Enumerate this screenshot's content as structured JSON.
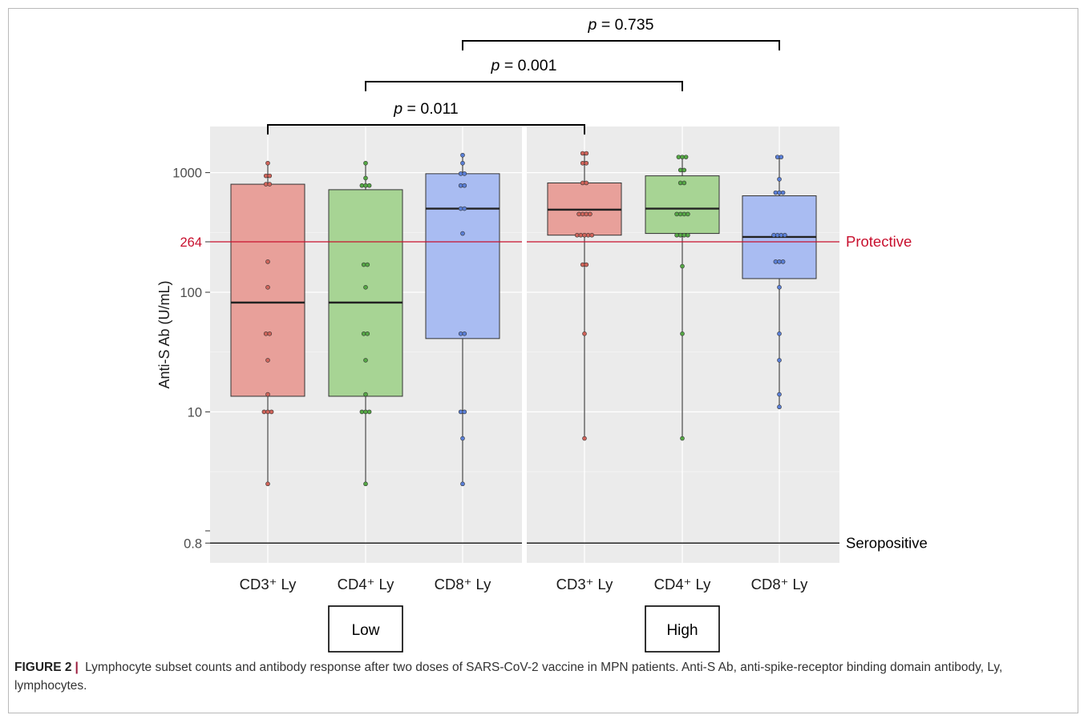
{
  "chart_data": {
    "type": "box",
    "ylabel": "Anti-S Ab (U/mL)",
    "yscale": "log",
    "ylim": [
      0.6,
      2200
    ],
    "yticks": [
      {
        "value": 0.8,
        "label": "0.8"
      },
      {
        "value": 10,
        "label": "10"
      },
      {
        "value": 100,
        "label": "100"
      },
      {
        "value": 264,
        "label": "264"
      },
      {
        "value": 1000,
        "label": "1000"
      }
    ],
    "panels": [
      {
        "group_label": "Low",
        "categories": [
          "CD3⁺ Ly",
          "CD4⁺ Ly",
          "CD8⁺ Ly"
        ]
      },
      {
        "group_label": "High",
        "categories": [
          "CD3⁺ Ly",
          "CD4⁺ Ly",
          "CD8⁺ Ly"
        ]
      }
    ],
    "colors": {
      "CD3": "#e8a09a",
      "CD4": "#a7d494",
      "CD8": "#a9bcf2",
      "CD3_point": "#d0645a",
      "CD4_point": "#55a845",
      "CD8_point": "#5b80d8",
      "protective": "#c8102e",
      "seropositive": "#000000",
      "panel_bg": "#ebebeb"
    },
    "boxes": [
      {
        "panel": 0,
        "subset": "CD3",
        "whisker_low": 2.5,
        "q1": 13.5,
        "median": 82,
        "q3": 800,
        "whisker_high": 1200,
        "points": [
          2.5,
          10,
          10,
          10,
          14,
          27,
          45,
          45,
          110,
          180,
          800,
          800,
          940,
          940,
          1200
        ]
      },
      {
        "panel": 0,
        "subset": "CD4",
        "whisker_low": 2.5,
        "q1": 13.5,
        "median": 82,
        "q3": 720,
        "whisker_high": 1200,
        "points": [
          2.5,
          10,
          10,
          10,
          14,
          27,
          45,
          45,
          110,
          170,
          170,
          780,
          780,
          780,
          900,
          1200
        ]
      },
      {
        "panel": 0,
        "subset": "CD8",
        "whisker_low": 2.5,
        "q1": 41,
        "median": 500,
        "q3": 980,
        "whisker_high": 1400,
        "points": [
          2.5,
          6,
          10,
          10,
          45,
          45,
          310,
          500,
          500,
          780,
          780,
          980,
          980,
          1200,
          1400
        ]
      },
      {
        "panel": 1,
        "subset": "CD3",
        "whisker_low": 6,
        "q1": 300,
        "median": 490,
        "q3": 820,
        "whisker_high": 1450,
        "points": [
          6,
          45,
          170,
          170,
          300,
          300,
          300,
          300,
          300,
          450,
          450,
          450,
          450,
          820,
          820,
          1200,
          1200,
          1450,
          1450
        ]
      },
      {
        "panel": 1,
        "subset": "CD4",
        "whisker_low": 6,
        "q1": 310,
        "median": 500,
        "q3": 940,
        "whisker_high": 1350,
        "points": [
          6,
          45,
          165,
          300,
          300,
          300,
          300,
          450,
          450,
          450,
          450,
          820,
          820,
          1050,
          1050,
          1350,
          1350,
          1350
        ]
      },
      {
        "panel": 1,
        "subset": "CD8",
        "whisker_low": 11,
        "q1": 130,
        "median": 290,
        "q3": 640,
        "whisker_high": 1350,
        "points": [
          11,
          14,
          27,
          45,
          110,
          180,
          180,
          180,
          300,
          300,
          300,
          300,
          680,
          680,
          680,
          880,
          1350,
          1350
        ]
      }
    ],
    "reference_lines": [
      {
        "value": 264,
        "label": "Protective",
        "color": "#c8102e"
      },
      {
        "value": 0.8,
        "label": "Seropositive",
        "color": "#000000"
      }
    ],
    "comparisons": [
      {
        "from": {
          "panel": 0,
          "subset": "CD3"
        },
        "to": {
          "panel": 1,
          "subset": "CD3"
        },
        "p": "0.011"
      },
      {
        "from": {
          "panel": 0,
          "subset": "CD4"
        },
        "to": {
          "panel": 1,
          "subset": "CD4"
        },
        "p": "0.001"
      },
      {
        "from": {
          "panel": 0,
          "subset": "CD8"
        },
        "to": {
          "panel": 1,
          "subset": "CD8"
        },
        "p": "0.735"
      }
    ],
    "p_prefix": "p",
    "p_equals": " = "
  },
  "caption": {
    "label": "FIGURE 2",
    "separator": "|",
    "text": "Lymphocyte subset counts and antibody response after two doses of SARS-CoV-2 vaccine in MPN patients. Anti-S Ab, anti-spike-receptor binding domain antibody, Ly, lymphocytes."
  }
}
